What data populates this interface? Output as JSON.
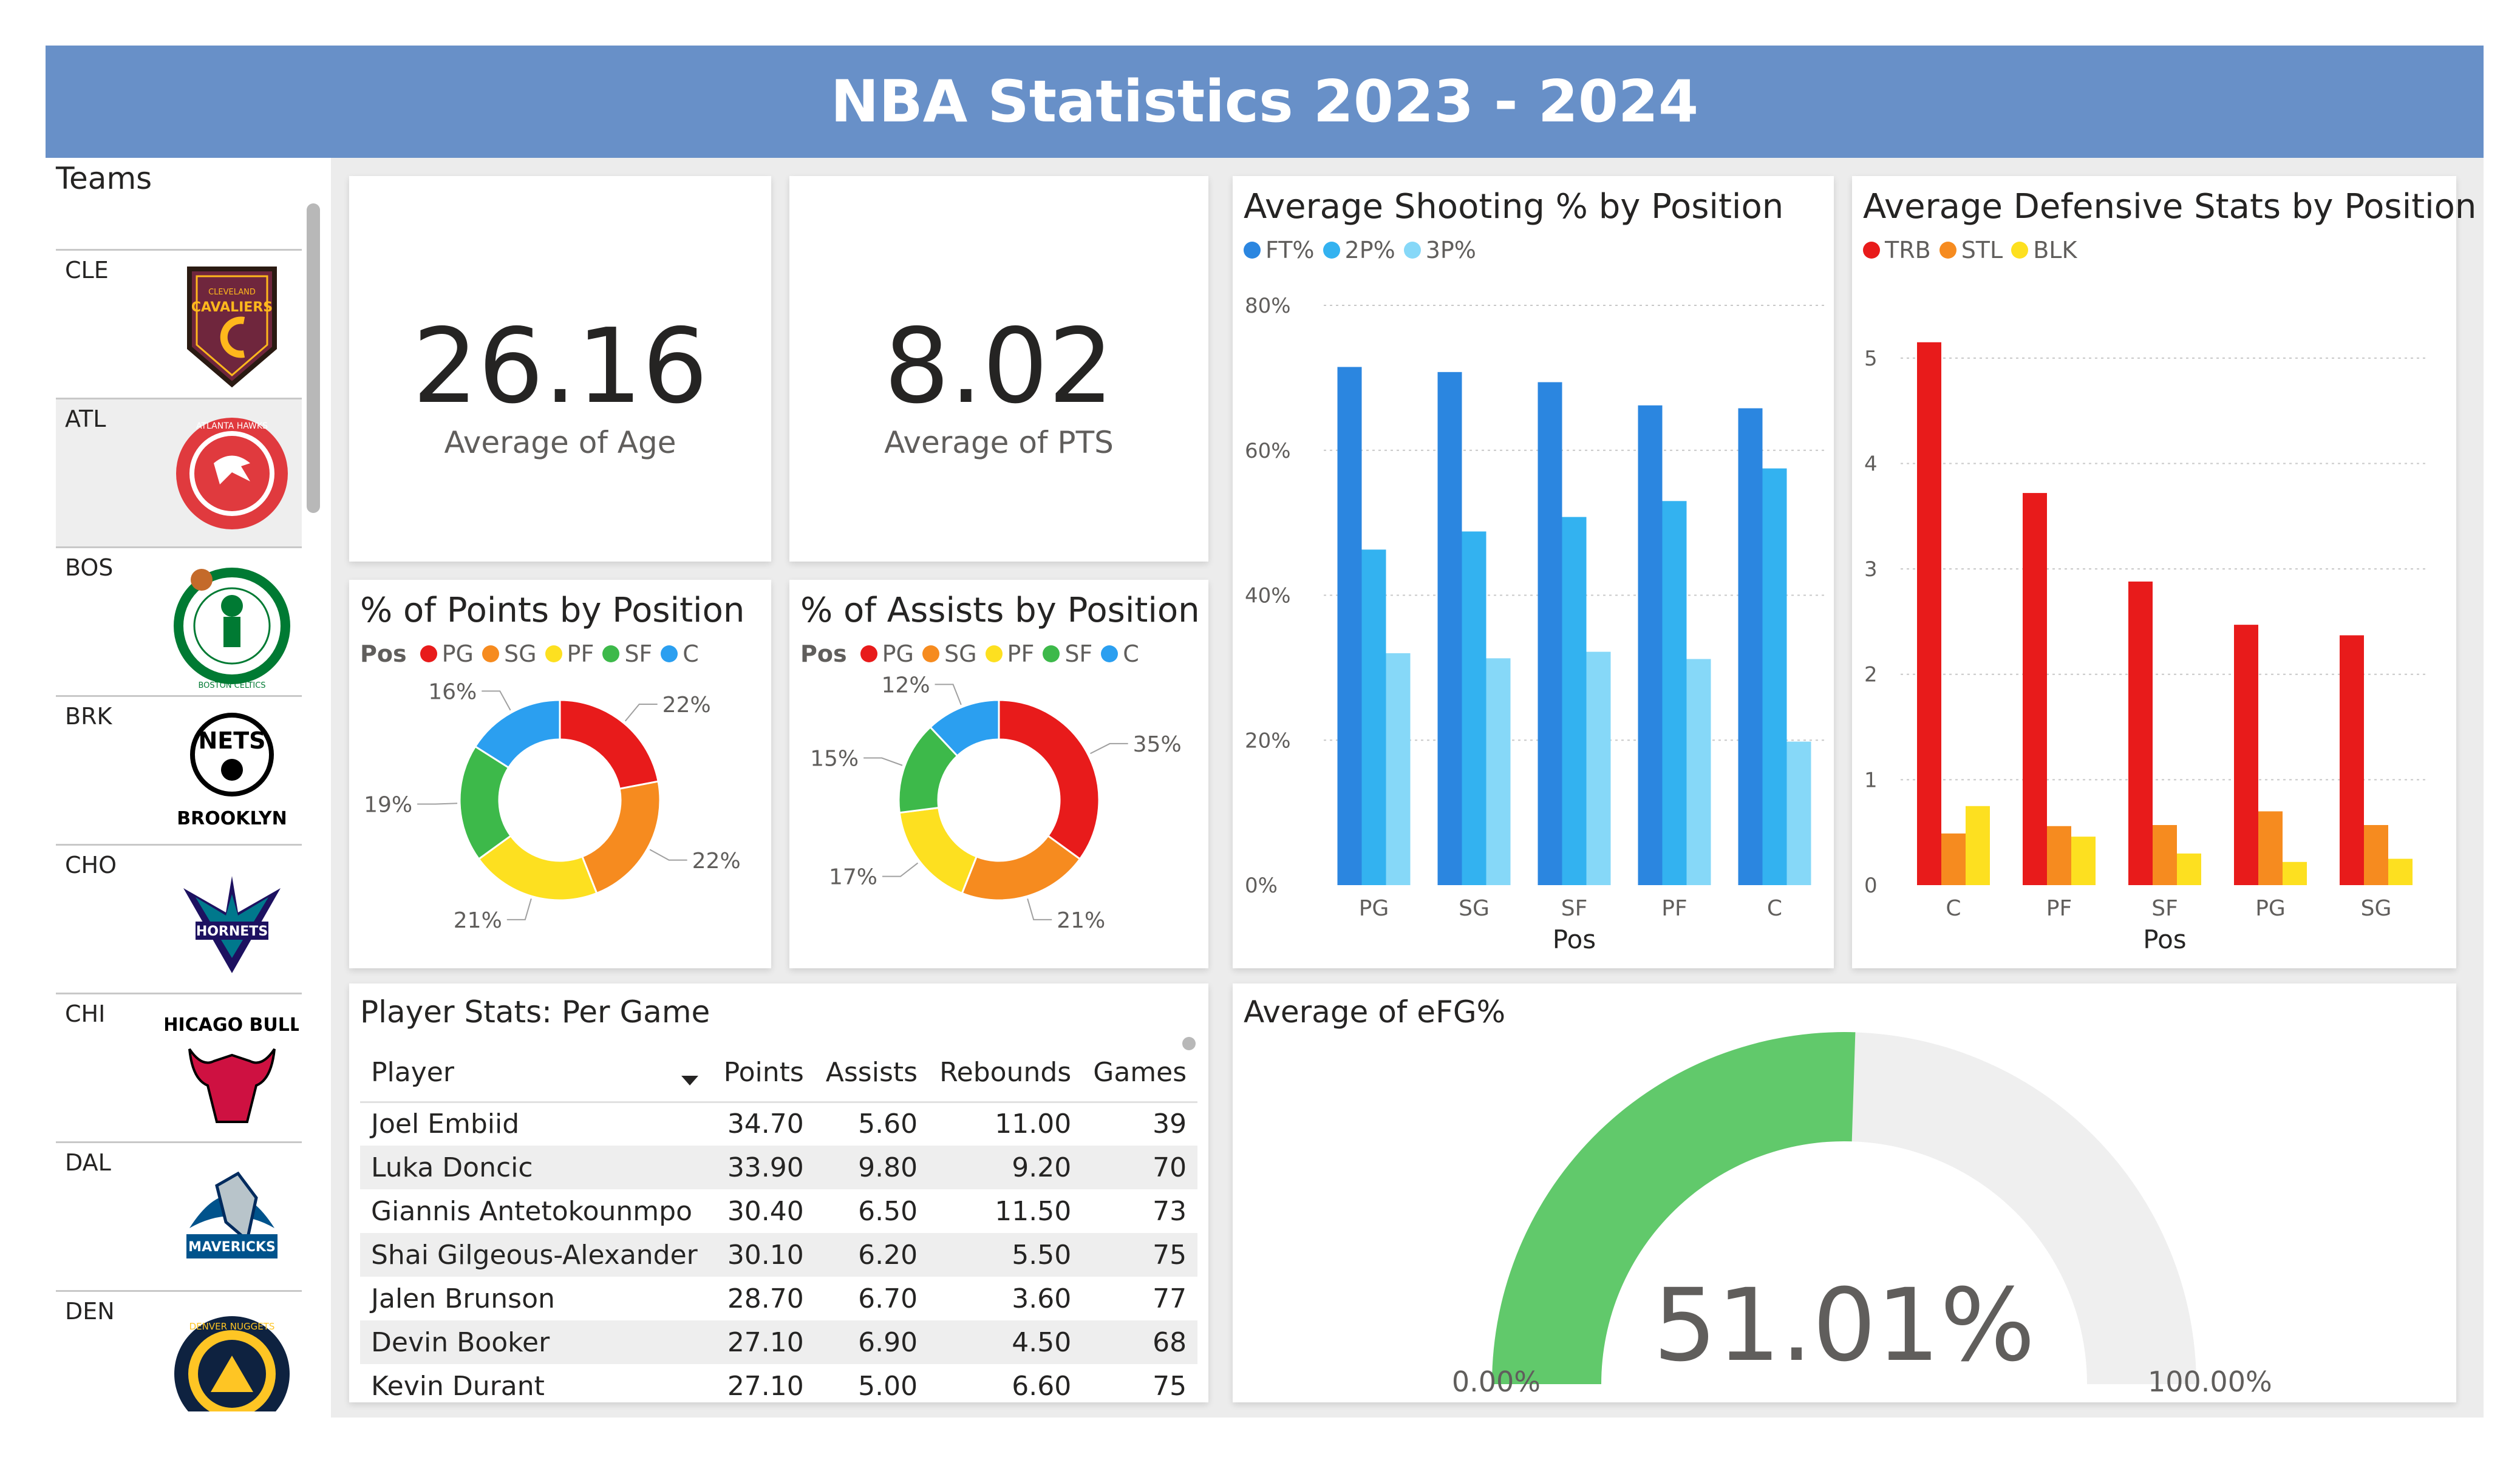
{
  "title": "NBA Statistics 2023 - 2024",
  "teams": {
    "label": "Teams",
    "items": [
      {
        "abbr": "CLE",
        "logo_icon": "cavaliers-logo-icon"
      },
      {
        "abbr": "ATL",
        "logo_icon": "hawks-logo-icon"
      },
      {
        "abbr": "BOS",
        "logo_icon": "celtics-logo-icon"
      },
      {
        "abbr": "BRK",
        "logo_icon": "nets-logo-icon"
      },
      {
        "abbr": "CHO",
        "logo_icon": "hornets-logo-icon"
      },
      {
        "abbr": "CHI",
        "logo_icon": "bulls-logo-icon"
      },
      {
        "abbr": "DAL",
        "logo_icon": "mavericks-logo-icon"
      },
      {
        "abbr": "DEN",
        "logo_icon": "nuggets-logo-icon"
      }
    ],
    "logo_text": {
      "cavaliers": "CAVALIERS",
      "cleveland": "CLEVELAND",
      "hawks": "ATLANTA HAWKS",
      "celtics": "BOSTON CELTICS",
      "nets": "NETS",
      "brooklyn": "BROOKLYN",
      "hornets": "HORNETS",
      "bulls": "CHICAGO BULLS",
      "mavericks": "MAVERICKS",
      "nuggets": "DENVER NUGGETS"
    }
  },
  "kpis": {
    "age": {
      "value": "26.16",
      "label": "Average of Age"
    },
    "pts": {
      "value": "8.02",
      "label": "Average of PTS"
    }
  },
  "colors": {
    "PG": "#e81b1b",
    "SG": "#f68b1f",
    "PF": "#fde020",
    "SF": "#3db94a",
    "C": "#2b9ff0",
    "FT": "#2b86e0",
    "2P": "#33b2f0",
    "3P": "#86d8f8",
    "TRB": "#e81b1b",
    "STL": "#f68b1f",
    "BLK": "#fde020",
    "gauge_fill": "#61c96b",
    "gauge_track": "#efefef"
  },
  "chart_data": [
    {
      "id": "points_by_position",
      "type": "pie",
      "title": "% of Points by Position",
      "legend_title": "Pos",
      "categories": [
        "PG",
        "SG",
        "PF",
        "SF",
        "C"
      ],
      "values": [
        22,
        22,
        21,
        19,
        16
      ],
      "labels": [
        "22%",
        "22%",
        "21%",
        "19%",
        "16%"
      ]
    },
    {
      "id": "assists_by_position",
      "type": "pie",
      "title": "% of Assists by Position",
      "legend_title": "Pos",
      "categories": [
        "PG",
        "SG",
        "PF",
        "SF",
        "C"
      ],
      "values": [
        35,
        21,
        17,
        15,
        12
      ],
      "labels": [
        "35%",
        "21%",
        "17%",
        "15%",
        "12%"
      ]
    },
    {
      "id": "shooting_by_position",
      "type": "bar",
      "title": "Average Shooting % by Position",
      "categories": [
        "PG",
        "SG",
        "SF",
        "PF",
        "C"
      ],
      "series": [
        {
          "name": "FT%",
          "values": [
            71.5,
            70.8,
            69.4,
            66.2,
            65.8
          ]
        },
        {
          "name": "2P%",
          "values": [
            46.3,
            48.8,
            50.8,
            53.0,
            57.5
          ]
        },
        {
          "name": "3P%",
          "values": [
            32.0,
            31.3,
            32.2,
            31.2,
            19.8
          ]
        }
      ],
      "xlabel": "Pos",
      "ylim": [
        0,
        80
      ],
      "ytick_labels": [
        "0%",
        "20%",
        "40%",
        "60%",
        "80%"
      ],
      "yticks": [
        0,
        20,
        40,
        60,
        80
      ]
    },
    {
      "id": "defense_by_position",
      "type": "bar",
      "title": "Average Defensive Stats by Position",
      "categories": [
        "C",
        "PF",
        "SF",
        "PG",
        "SG"
      ],
      "series": [
        {
          "name": "TRB",
          "values": [
            5.15,
            3.72,
            2.88,
            2.47,
            2.37
          ]
        },
        {
          "name": "STL",
          "values": [
            0.49,
            0.56,
            0.57,
            0.7,
            0.57
          ]
        },
        {
          "name": "BLK",
          "values": [
            0.75,
            0.46,
            0.3,
            0.22,
            0.25
          ]
        }
      ],
      "xlabel": "Pos",
      "ylim": [
        0,
        5.5
      ],
      "ytick_labels": [
        "0",
        "1",
        "2",
        "3",
        "4",
        "5"
      ],
      "yticks": [
        0,
        1,
        2,
        3,
        4,
        5
      ]
    },
    {
      "id": "efg_gauge",
      "type": "gauge",
      "title": "Average of eFG%",
      "value": 51.01,
      "min": 0,
      "max": 100,
      "value_label": "51.01%",
      "min_label": "0.00%",
      "max_label": "100.00%"
    }
  ],
  "player_table": {
    "title": "Player Stats: Per Game",
    "columns": [
      "Player",
      "Points",
      "Assists",
      "Rebounds",
      "Games"
    ],
    "rows": [
      [
        "Joel Embiid",
        "34.70",
        "5.60",
        "11.00",
        "39"
      ],
      [
        "Luka Doncic",
        "33.90",
        "9.80",
        "9.20",
        "70"
      ],
      [
        "Giannis Antetokounmpo",
        "30.40",
        "6.50",
        "11.50",
        "73"
      ],
      [
        "Shai Gilgeous-Alexander",
        "30.10",
        "6.20",
        "5.50",
        "75"
      ],
      [
        "Jalen Brunson",
        "28.70",
        "6.70",
        "3.60",
        "77"
      ],
      [
        "Devin Booker",
        "27.10",
        "6.90",
        "4.50",
        "68"
      ],
      [
        "Kevin Durant",
        "27.10",
        "5.00",
        "6.60",
        "75"
      ]
    ]
  }
}
